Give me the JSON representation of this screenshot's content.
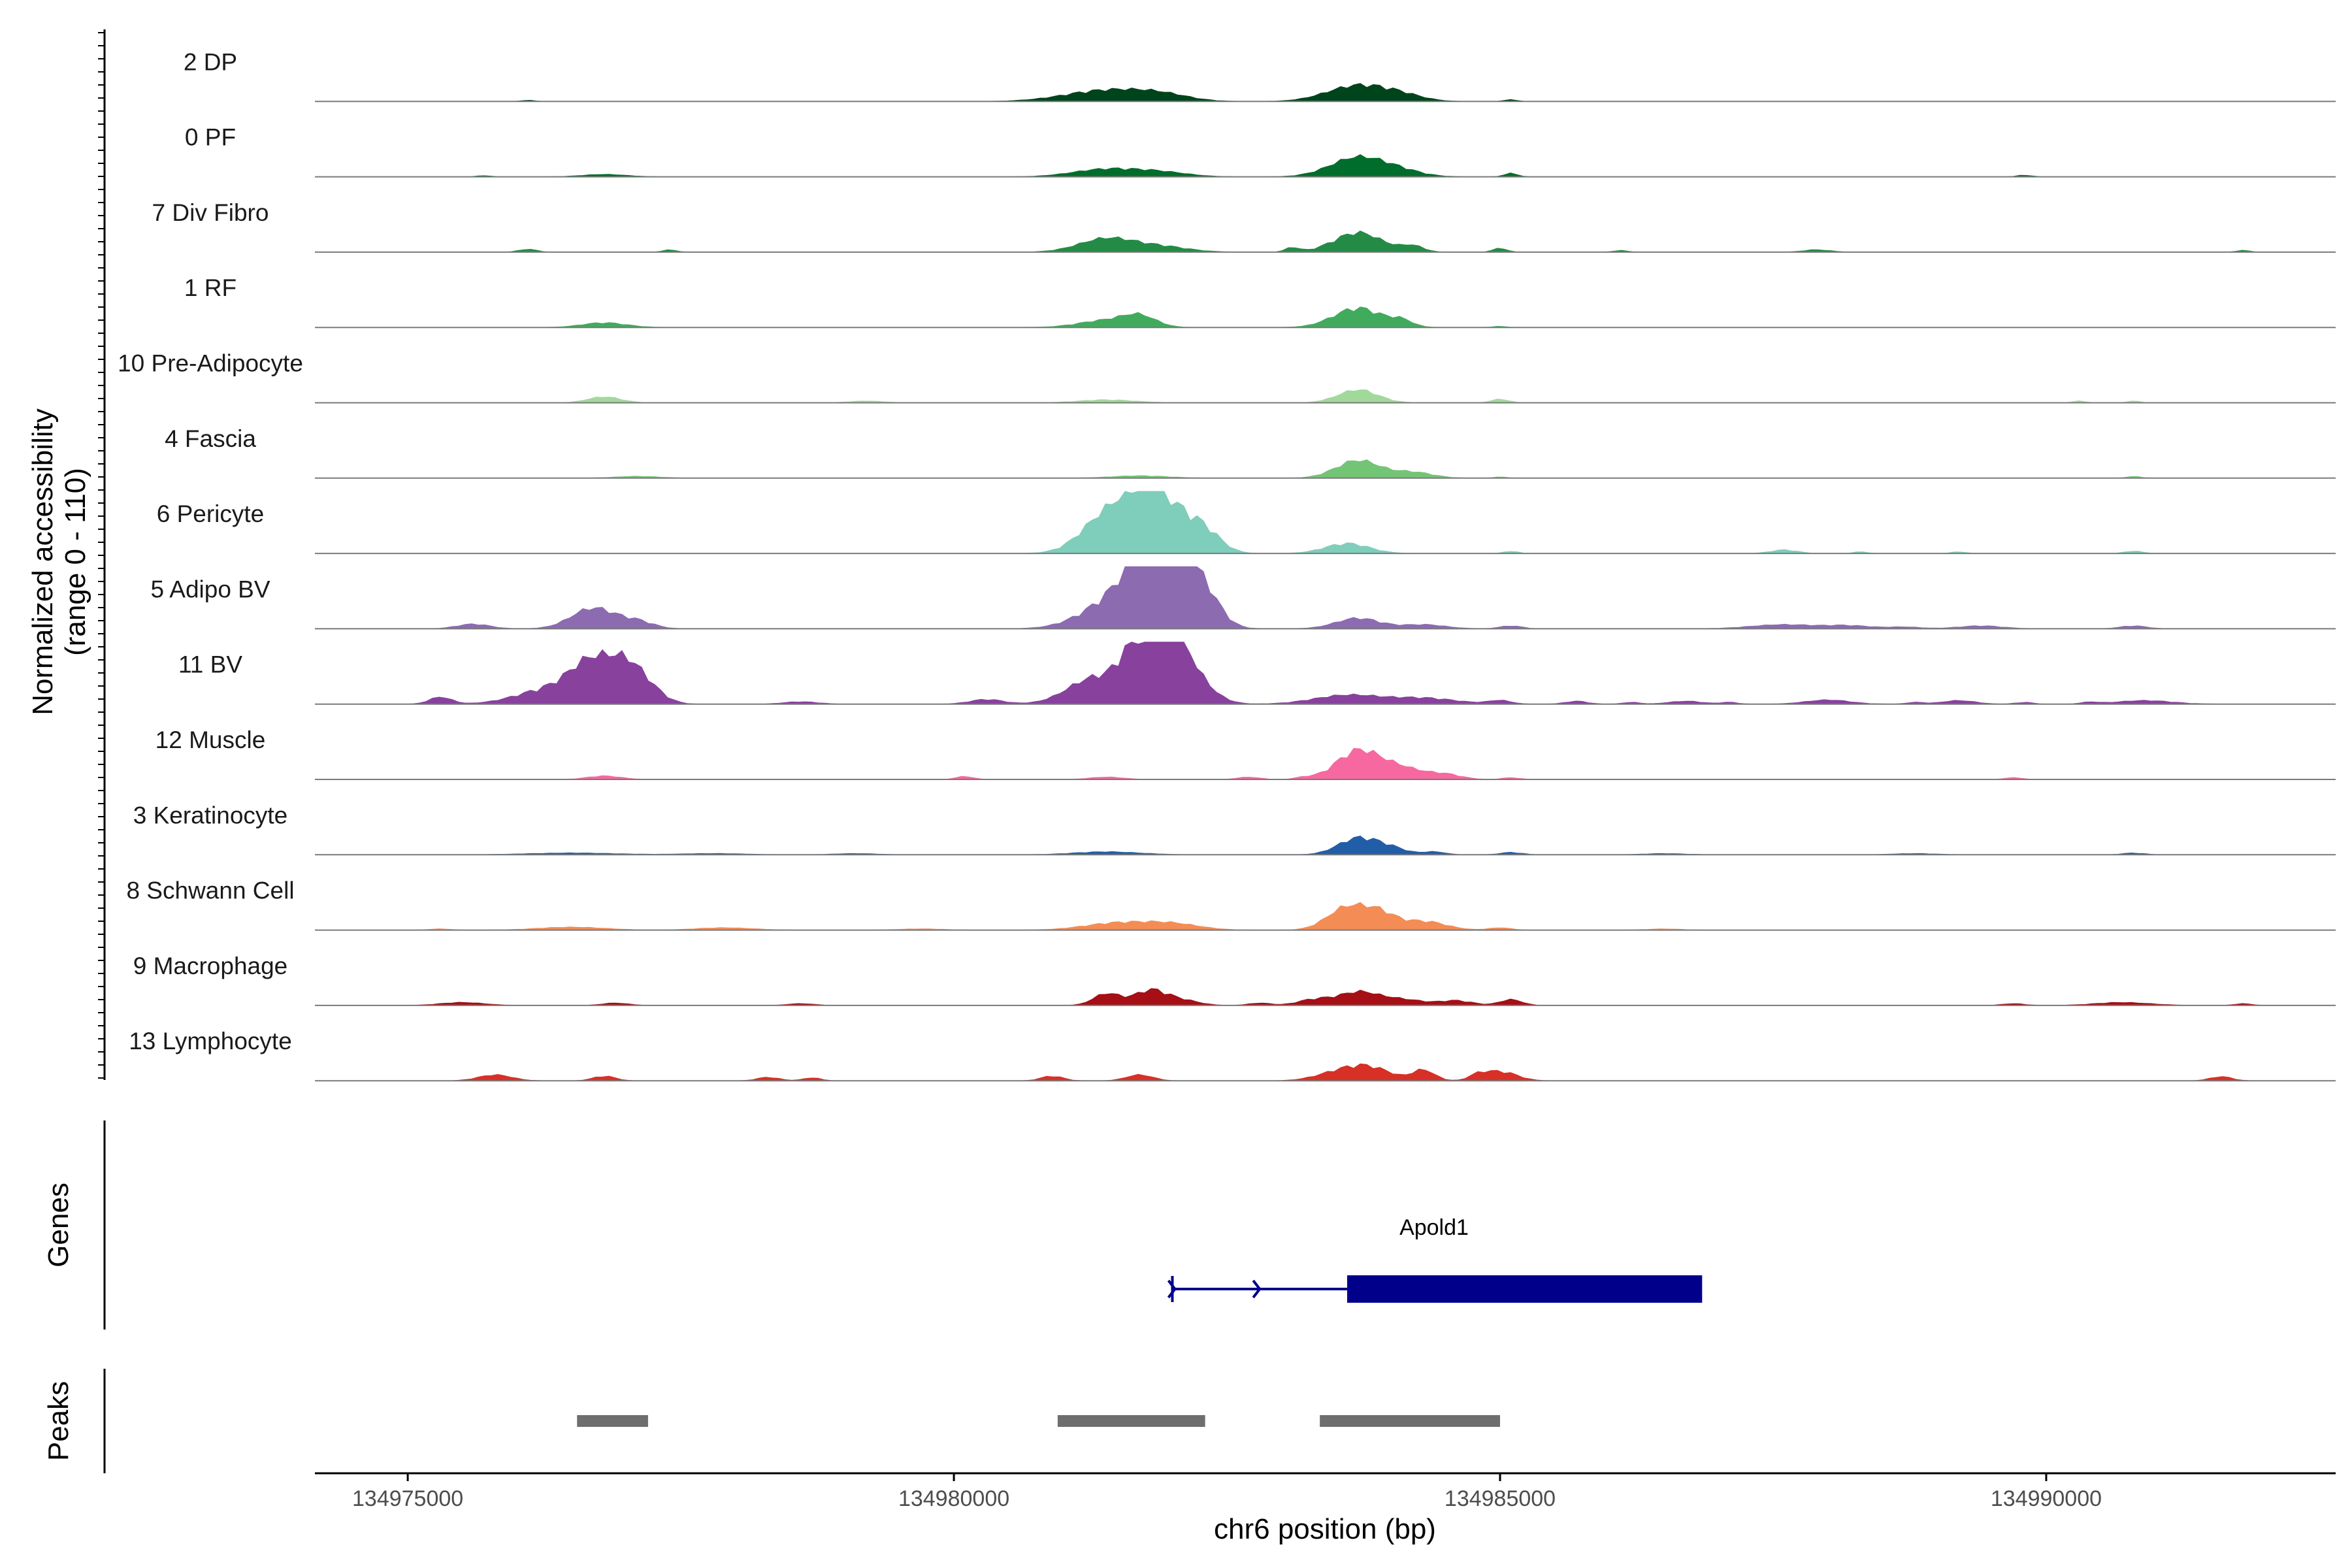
{
  "chart_data": {
    "type": "area",
    "title": "",
    "ylabel": "Normalized accessibility",
    "ylabel_range": "(range 0 - 110)",
    "y_range": [
      0,
      110
    ],
    "xlabel": "chr6 position (bp)",
    "xlim": [
      134974150,
      134992650
    ],
    "x_ticks": [
      134975000,
      134980000,
      134985000,
      134990000
    ],
    "x_tick_labels": [
      "134975000",
      "134980000",
      "134985000",
      "134990000"
    ],
    "tracks": [
      {
        "name": "2 DP",
        "color": "#00441b",
        "peaks": [
          [
            134981400,
            19,
            380
          ],
          [
            134981900,
            9,
            250
          ],
          [
            134983700,
            27,
            280
          ],
          [
            134984100,
            8,
            200
          ],
          [
            134985100,
            3,
            60
          ],
          [
            134976100,
            2,
            60
          ]
        ]
      },
      {
        "name": "0 PF",
        "color": "#006d2c",
        "peaks": [
          [
            134981400,
            13,
            300
          ],
          [
            134981900,
            7,
            250
          ],
          [
            134983700,
            33,
            250
          ],
          [
            134984100,
            8,
            200
          ],
          [
            134985100,
            6,
            60
          ],
          [
            134976800,
            4,
            200
          ],
          [
            134975700,
            2,
            60
          ],
          [
            134989800,
            3,
            60
          ]
        ]
      },
      {
        "name": "7 Div Fibro",
        "color": "#238b45",
        "peaks": [
          [
            134981400,
            23,
            250
          ],
          [
            134981900,
            9,
            250
          ],
          [
            134983100,
            8,
            60
          ],
          [
            134983700,
            33,
            220
          ],
          [
            134984200,
            10,
            100
          ],
          [
            134985000,
            7,
            60
          ],
          [
            134976100,
            5,
            80
          ],
          [
            134977400,
            4,
            60
          ],
          [
            134987900,
            4,
            120
          ],
          [
            134986100,
            3,
            60
          ],
          [
            134991800,
            3,
            60
          ]
        ]
      },
      {
        "name": "1 RF",
        "color": "#41ab5d",
        "peaks": [
          [
            134981400,
            12,
            250
          ],
          [
            134981700,
            17,
            150
          ],
          [
            134983700,
            33,
            220
          ],
          [
            134984100,
            10,
            100
          ],
          [
            134976800,
            8,
            200
          ],
          [
            134985000,
            2,
            60
          ]
        ]
      },
      {
        "name": "10 Pre-Adipocyte",
        "color": "#a1d99b",
        "peaks": [
          [
            134983700,
            22,
            180
          ],
          [
            134976800,
            10,
            150
          ],
          [
            134981400,
            5,
            250
          ],
          [
            134985000,
            6,
            80
          ],
          [
            134979200,
            3,
            150
          ],
          [
            134990300,
            3,
            60
          ],
          [
            134990800,
            3,
            60
          ]
        ]
      },
      {
        "name": "4 Fascia",
        "color": "#74c476",
        "peaks": [
          [
            134983700,
            30,
            200
          ],
          [
            134984200,
            10,
            180
          ],
          [
            134981700,
            4,
            250
          ],
          [
            134977100,
            3,
            200
          ],
          [
            134985000,
            2,
            60
          ],
          [
            134990800,
            3,
            60
          ]
        ]
      },
      {
        "name": "6 Pericyte",
        "color": "#7fcdbb",
        "peaks": [
          [
            134981400,
            62,
            230
          ],
          [
            134981750,
            68,
            200
          ],
          [
            134982000,
            55,
            230
          ],
          [
            134982300,
            25,
            150
          ],
          [
            134983600,
            17,
            200
          ],
          [
            134985100,
            4,
            60
          ],
          [
            134987600,
            6,
            120
          ],
          [
            134988300,
            3,
            60
          ],
          [
            134989200,
            3,
            60
          ],
          [
            134990800,
            4,
            80
          ]
        ]
      },
      {
        "name": "5 Adipo BV",
        "color": "#8c6bb1",
        "peaks": [
          [
            134976700,
            35,
            200
          ],
          [
            134977100,
            12,
            150
          ],
          [
            134975600,
            8,
            150
          ],
          [
            134981500,
            50,
            300
          ],
          [
            134981800,
            100,
            200
          ],
          [
            134982100,
            80,
            200
          ],
          [
            134982300,
            30,
            150
          ],
          [
            134983700,
            18,
            200
          ],
          [
            134984300,
            7,
            200
          ],
          [
            134985100,
            5,
            100
          ],
          [
            134987600,
            7,
            300
          ],
          [
            134988200,
            5,
            200
          ],
          [
            134988700,
            3,
            150
          ],
          [
            134989400,
            5,
            200
          ],
          [
            134990800,
            5,
            120
          ]
        ]
      },
      {
        "name": "11 BV",
        "color": "#88419d",
        "peaks": [
          [
            134975300,
            12,
            100
          ],
          [
            134976300,
            25,
            300
          ],
          [
            134976700,
            65,
            200
          ],
          [
            134977000,
            48,
            150
          ],
          [
            134977200,
            22,
            150
          ],
          [
            134981300,
            45,
            250
          ],
          [
            134981700,
            100,
            150
          ],
          [
            134982000,
            92,
            150
          ],
          [
            134982200,
            35,
            180
          ],
          [
            134980300,
            8,
            150
          ],
          [
            134983600,
            15,
            300
          ],
          [
            134984300,
            10,
            300
          ],
          [
            134985000,
            6,
            100
          ],
          [
            134985700,
            5,
            100
          ],
          [
            134986700,
            5,
            150
          ],
          [
            134988000,
            7,
            200
          ],
          [
            134989200,
            6,
            150
          ],
          [
            134990900,
            6,
            250
          ],
          [
            134978600,
            4,
            150
          ],
          [
            134986200,
            3,
            80
          ],
          [
            134987100,
            3,
            80
          ],
          [
            134988800,
            3,
            80
          ],
          [
            134989800,
            3,
            80
          ],
          [
            134990400,
            3,
            80
          ]
        ]
      },
      {
        "name": "12 Muscle",
        "color": "#f768a1",
        "peaks": [
          [
            134983700,
            48,
            200
          ],
          [
            134984100,
            18,
            200
          ],
          [
            134984500,
            8,
            150
          ],
          [
            134976800,
            6,
            150
          ],
          [
            134980100,
            5,
            80
          ],
          [
            134981400,
            4,
            150
          ],
          [
            134982700,
            4,
            100
          ],
          [
            134983200,
            3,
            80
          ],
          [
            134985100,
            3,
            80
          ],
          [
            134989700,
            3,
            80
          ]
        ]
      },
      {
        "name": "3 Keratinocyte",
        "color": "#225ea8",
        "peaks": [
          [
            134983700,
            28,
            180
          ],
          [
            134984000,
            10,
            150
          ],
          [
            134984400,
            5,
            100
          ],
          [
            134981400,
            5,
            300
          ],
          [
            134985100,
            4,
            100
          ],
          [
            134976500,
            3,
            400
          ],
          [
            134977800,
            2,
            300
          ],
          [
            134979100,
            2,
            200
          ],
          [
            134986500,
            2,
            200
          ],
          [
            134988800,
            2,
            200
          ],
          [
            134990800,
            3,
            100
          ]
        ]
      },
      {
        "name": "8 Schwann Cell",
        "color": "#f48c56",
        "peaks": [
          [
            134983600,
            38,
            180
          ],
          [
            134983900,
            25,
            150
          ],
          [
            134984300,
            15,
            200
          ],
          [
            134981500,
            12,
            300
          ],
          [
            134982000,
            10,
            250
          ],
          [
            134976500,
            5,
            300
          ],
          [
            134977900,
            4,
            250
          ],
          [
            134985000,
            4,
            100
          ],
          [
            134979700,
            2,
            200
          ],
          [
            134986500,
            2,
            150
          ],
          [
            134975300,
            2,
            100
          ]
        ]
      },
      {
        "name": "9 Macrophage",
        "color": "#a50f15",
        "peaks": [
          [
            134981400,
            20,
            120
          ],
          [
            134981800,
            26,
            150
          ],
          [
            134982100,
            8,
            150
          ],
          [
            134983300,
            10,
            150
          ],
          [
            134983700,
            22,
            180
          ],
          [
            134984100,
            10,
            200
          ],
          [
            134984600,
            8,
            150
          ],
          [
            134985100,
            10,
            100
          ],
          [
            134982800,
            4,
            100
          ],
          [
            134975500,
            5,
            200
          ],
          [
            134976900,
            4,
            120
          ],
          [
            134978600,
            3,
            120
          ],
          [
            134990700,
            5,
            250
          ],
          [
            134989700,
            3,
            100
          ],
          [
            134991800,
            3,
            80
          ]
        ]
      },
      {
        "name": "13 Lymphocyte",
        "color": "#d73027",
        "peaks": [
          [
            134975800,
            10,
            150
          ],
          [
            134976800,
            8,
            100
          ],
          [
            134978300,
            6,
            100
          ],
          [
            134978700,
            5,
            80
          ],
          [
            134980900,
            8,
            100
          ],
          [
            134981700,
            10,
            120
          ],
          [
            134983500,
            12,
            200
          ],
          [
            134983800,
            22,
            200
          ],
          [
            134984300,
            18,
            100
          ],
          [
            134984800,
            8,
            80
          ],
          [
            134985000,
            16,
            150
          ],
          [
            134991600,
            7,
            100
          ]
        ]
      }
    ],
    "genes": [
      {
        "name": "Apold1",
        "strand": "+",
        "intron_start": 134982000,
        "intron_end": 134983600,
        "exon_start": 134983600,
        "exon_end": 134986850,
        "color": "#00008b"
      }
    ],
    "peaks_track": [
      {
        "start": 134976550,
        "end": 134977200
      },
      {
        "start": 134980950,
        "end": 134982300
      },
      {
        "start": 134983350,
        "end": 134985000
      }
    ],
    "panel_labels": {
      "genes": "Genes",
      "peaks": "Peaks"
    }
  }
}
